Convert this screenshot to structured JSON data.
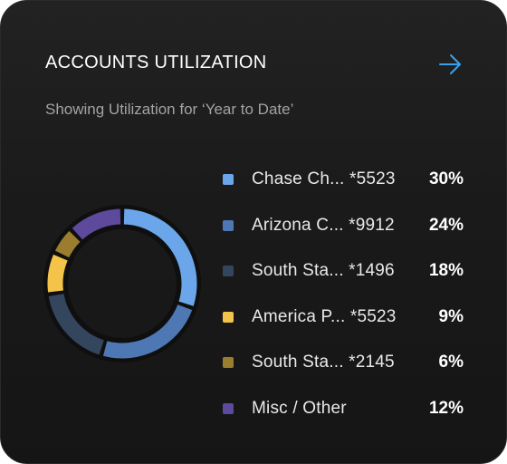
{
  "card": {
    "title": "ACCOUNTS UTILIZATION",
    "subtitle": "Showing Utilization for ‘Year to Date’",
    "arrow_icon": "arrow-right-icon",
    "accent_color": "#3aa0ea"
  },
  "chart_data": {
    "type": "pie",
    "variant": "donut",
    "legend_position": "right",
    "categories": [
      "Chase Ch... *5523",
      "Arizona C... *9912",
      "South Sta... *1496",
      "America P... *5523",
      "South Sta... *2145",
      "Misc / Other"
    ],
    "values": [
      30,
      24,
      18,
      9,
      6,
      12
    ],
    "labels": [
      "30%",
      "24%",
      "18%",
      "9%",
      "6%",
      "12%"
    ],
    "colors": [
      "#6aa6e9",
      "#4e78b4",
      "#34455e",
      "#f4c34a",
      "#9a7d2e",
      "#5d4a9c"
    ]
  }
}
